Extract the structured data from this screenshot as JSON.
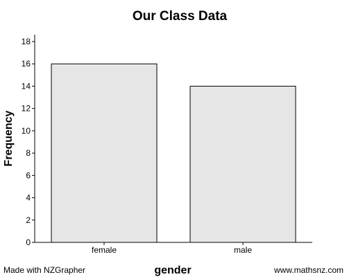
{
  "chart_data": {
    "type": "bar",
    "title": "Our Class Data",
    "xlabel": "gender",
    "ylabel": "Frequency",
    "categories": [
      "female",
      "male"
    ],
    "values": [
      16,
      14
    ],
    "ylim": [
      0,
      18
    ],
    "y_ticks": [
      0,
      2,
      4,
      6,
      8,
      10,
      12,
      14,
      16,
      18
    ],
    "grid": false,
    "bar_color": "#e6e6e6",
    "bar_stroke": "#000000"
  },
  "footer": {
    "left": "Made with NZGrapher",
    "right": "www.mathsnz.com"
  }
}
